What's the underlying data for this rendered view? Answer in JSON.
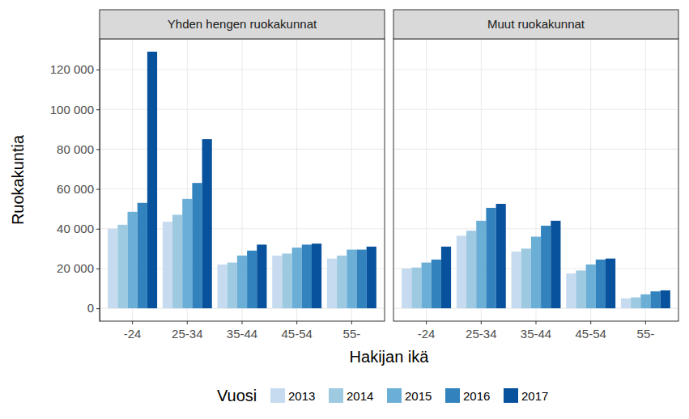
{
  "chart_data": {
    "type": "bar",
    "x_label": "Hakijan ikä",
    "y_label": "Ruokakuntia",
    "legend_title": "Vuosi",
    "legend": "bottom",
    "grid": true,
    "categories": [
      "-24",
      "25-34",
      "35-44",
      "45-54",
      "55-"
    ],
    "ylim": [
      -6450,
      135450
    ],
    "yticks": [
      {
        "value": 0,
        "label": "0"
      },
      {
        "value": 20000,
        "label": "20 000"
      },
      {
        "value": 40000,
        "label": "40 000"
      },
      {
        "value": 60000,
        "label": "60 000"
      },
      {
        "value": 80000,
        "label": "80 000"
      },
      {
        "value": 100000,
        "label": "100 000"
      },
      {
        "value": 120000,
        "label": "120 000"
      }
    ],
    "panels": [
      {
        "title": "Yhden hengen ruokakunnat",
        "series": [
          {
            "name": "2013",
            "color": "#c6dbef",
            "values": [
              40000,
              43500,
              22000,
              26500,
              25000
            ]
          },
          {
            "name": "2014",
            "color": "#9ecae1",
            "values": [
              42000,
              47000,
              23000,
              27500,
              26500
            ]
          },
          {
            "name": "2015",
            "color": "#6baed6",
            "values": [
              48500,
              55000,
              26500,
              30500,
              29500
            ]
          },
          {
            "name": "2016",
            "color": "#3182bd",
            "values": [
              53000,
              63000,
              29000,
              32000,
              29500
            ]
          },
          {
            "name": "2017",
            "color": "#08519c",
            "values": [
              129000,
              85000,
              32000,
              32500,
              31000
            ]
          }
        ]
      },
      {
        "title": "Muut ruokakunnat",
        "series": [
          {
            "name": "2013",
            "color": "#c6dbef",
            "values": [
              20000,
              36500,
              28500,
              17500,
              5000
            ]
          },
          {
            "name": "2014",
            "color": "#9ecae1",
            "values": [
              20500,
              39000,
              30000,
              19000,
              5500
            ]
          },
          {
            "name": "2015",
            "color": "#6baed6",
            "values": [
              23000,
              44000,
              36000,
              22000,
              7000
            ]
          },
          {
            "name": "2016",
            "color": "#3182bd",
            "values": [
              24500,
              50500,
              41500,
              24500,
              8500
            ]
          },
          {
            "name": "2017",
            "color": "#08519c",
            "values": [
              31000,
              52500,
              44000,
              25000,
              9000
            ]
          }
        ]
      }
    ]
  }
}
